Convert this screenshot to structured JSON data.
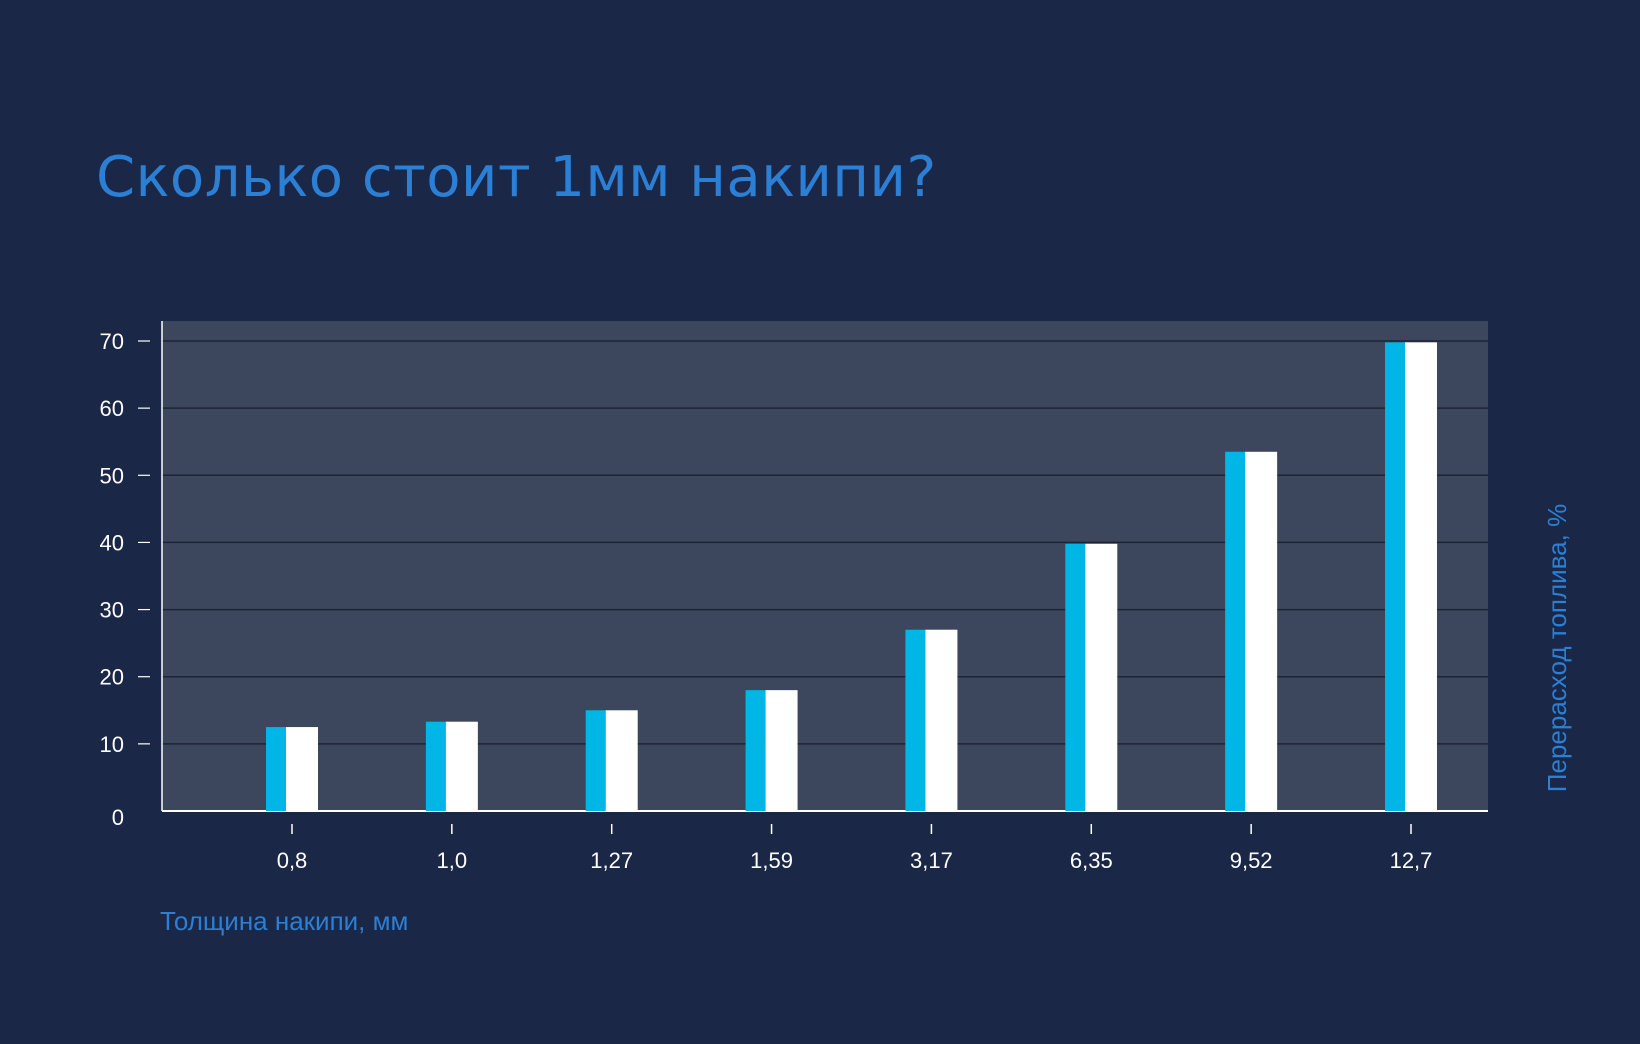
{
  "title": "Сколько стоит 1мм накипи?",
  "colors": {
    "background": "#1b2746",
    "plot_background": "#3c475d",
    "accent": "#2b7fd4",
    "bar_left": "#00b6e6",
    "bar_right": "#ffffff",
    "grid": "#1c2436",
    "text": "#ffffff"
  },
  "chart_data": {
    "type": "bar",
    "categories": [
      "0,8",
      "1,0",
      "1,27",
      "1,59",
      "3,17",
      "6,35",
      "9,52",
      "12,7"
    ],
    "values": [
      12.5,
      13.3,
      15,
      18,
      27,
      39.8,
      53.5,
      69.8
    ],
    "xlabel": "Толщина накипи, мм",
    "ylabel": "Перерасход топлива, %",
    "ylim": [
      0,
      70
    ],
    "yticks": [
      "0",
      "10",
      "20",
      "30",
      "40",
      "50",
      "60",
      "70"
    ],
    "grid": true,
    "legend": "none"
  }
}
